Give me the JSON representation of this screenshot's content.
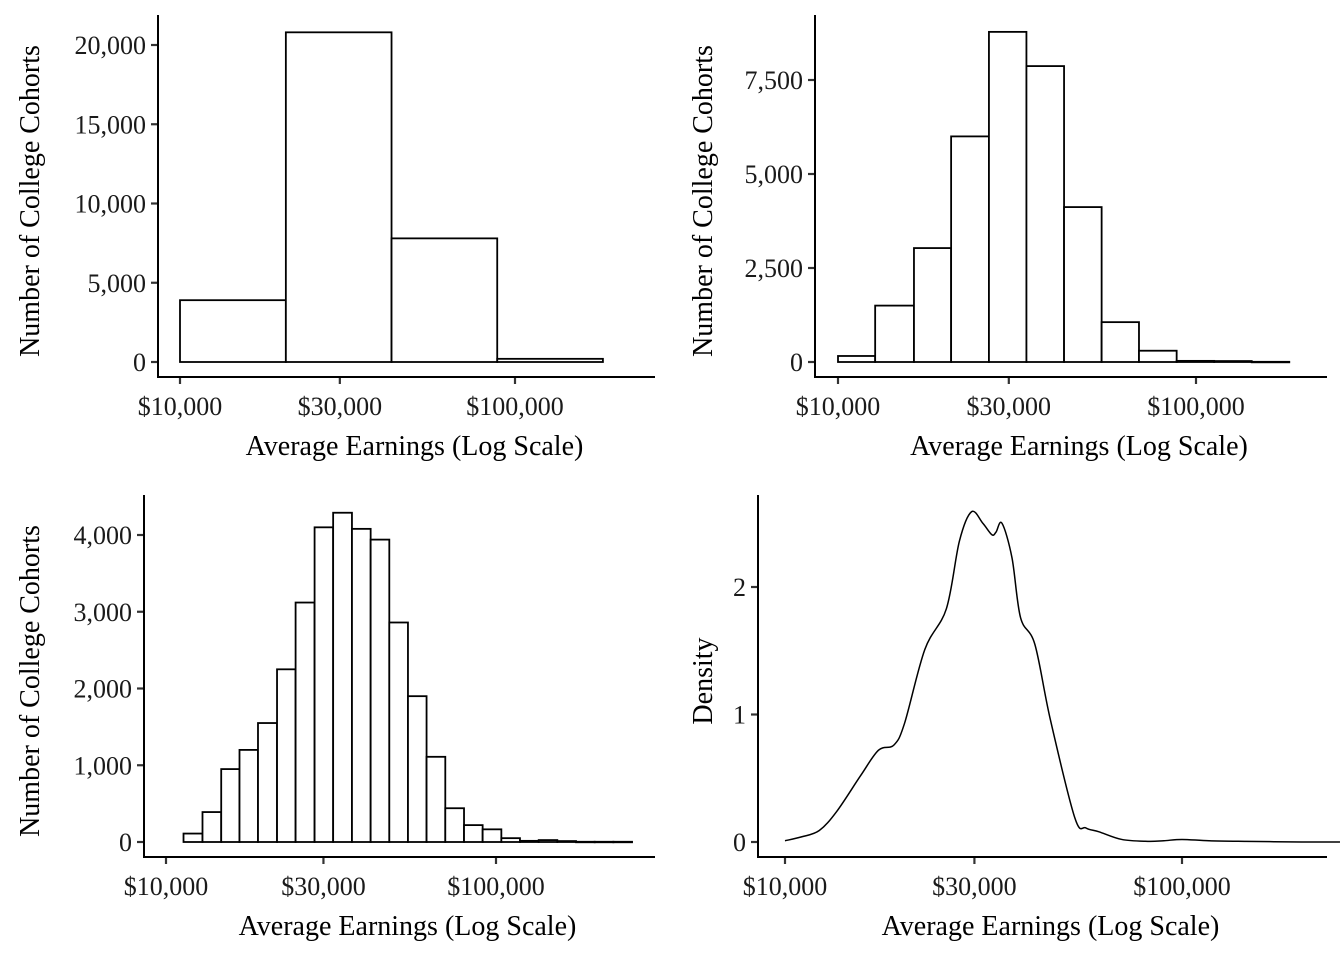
{
  "chart_data": [
    {
      "type": "bar",
      "subtype": "histogram",
      "panel": "top-left",
      "title": "",
      "xlabel": "Average Earnings (Log Scale)",
      "ylabel": "Number of College Cohorts",
      "x_scale": "log10",
      "xlim": [
        9000,
        260000
      ],
      "ylim": [
        0,
        21500
      ],
      "x_ticks": [
        10000,
        30000,
        100000
      ],
      "x_tick_labels": [
        "$10,000",
        "$30,000",
        "$100,000"
      ],
      "y_ticks": [
        0,
        5000,
        10000,
        15000,
        20000
      ],
      "y_tick_labels": [
        "0",
        "5,000",
        "10,000",
        "15,000",
        "20,000"
      ],
      "grid": false,
      "bin_edges": [
        10000,
        20700,
        42800,
        88500,
        183000
      ],
      "values": [
        3900,
        20800,
        7800,
        200
      ]
    },
    {
      "type": "bar",
      "subtype": "histogram",
      "panel": "top-right",
      "title": "",
      "xlabel": "Average Earnings (Log Scale)",
      "ylabel": "Number of College Cohorts",
      "x_scale": "log10",
      "xlim": [
        8700,
        260000
      ],
      "ylim": [
        0,
        9200
      ],
      "x_ticks": [
        10000,
        30000,
        100000
      ],
      "x_tick_labels": [
        "$10,000",
        "$30,000",
        "$100,000"
      ],
      "y_ticks": [
        0,
        2500,
        5000,
        7500
      ],
      "y_tick_labels": [
        "0",
        "2,500",
        "5,000",
        "7,500"
      ],
      "grid": false,
      "bin_edges": [
        10000,
        12700,
        16300,
        20700,
        26400,
        33600,
        42800,
        54500,
        69300,
        88300,
        112400,
        143100,
        182200
      ],
      "values": [
        160,
        1500,
        3030,
        6000,
        8780,
        7870,
        4120,
        1060,
        300,
        30,
        25,
        5
      ]
    },
    {
      "type": "bar",
      "subtype": "histogram",
      "panel": "bottom-left",
      "title": "",
      "xlabel": "Average Earnings (Log Scale)",
      "ylabel": "Number of College Cohorts",
      "x_scale": "log10",
      "xlim": [
        8600,
        260000
      ],
      "ylim": [
        0,
        4500
      ],
      "x_ticks": [
        10000,
        30000,
        100000
      ],
      "x_tick_labels": [
        "$10,000",
        "$30,000",
        "$100,000"
      ],
      "y_ticks": [
        0,
        1000,
        2000,
        3000,
        4000
      ],
      "y_tick_labels": [
        "0",
        "1,000",
        "2,000",
        "3,000",
        "4,000"
      ],
      "grid": false,
      "bin_edges": [
        11300,
        12900,
        14700,
        16700,
        19000,
        21700,
        24700,
        28200,
        32100,
        36600,
        41700,
        47500,
        54100,
        61600,
        70200,
        80000,
        91100,
        103800,
        118200,
        134700,
        153400,
        174800,
        199100,
        226800,
        258400
      ],
      "values": [
        110,
        390,
        950,
        1200,
        1550,
        2250,
        3120,
        4100,
        4290,
        4080,
        3940,
        2860,
        1900,
        1110,
        440,
        220,
        165,
        50,
        15,
        25,
        12,
        3,
        3,
        3
      ]
    },
    {
      "type": "line",
      "subtype": "density",
      "panel": "bottom-right",
      "title": "",
      "xlabel": "Average Earnings (Log Scale)",
      "ylabel": "Density",
      "x_scale": "log10",
      "xlim": [
        8800,
        260000
      ],
      "ylim": [
        0,
        2.7
      ],
      "x_ticks": [
        10000,
        30000,
        100000
      ],
      "x_tick_labels": [
        "$10,000",
        "$30,000",
        "$100,000"
      ],
      "y_ticks": [
        0,
        1,
        2
      ],
      "y_tick_labels": [
        "0",
        "1",
        "2"
      ],
      "grid": false,
      "x": [
        10000,
        11000,
        12200,
        13500,
        15500,
        17200,
        18800,
        20000,
        22500,
        25500,
        27500,
        29500,
        31500,
        33200,
        34000,
        35200,
        37300,
        39200,
        42600,
        46600,
        53700,
        57300,
        61800,
        70500,
        82000,
        90000,
        100000,
        117000,
        145000,
        200000,
        250000
      ],
      "y": [
        0.01,
        0.04,
        0.09,
        0.24,
        0.52,
        0.72,
        0.76,
        0.93,
        1.51,
        1.83,
        2.36,
        2.59,
        2.5,
        2.41,
        2.43,
        2.5,
        2.23,
        1.76,
        1.55,
        0.96,
        0.19,
        0.11,
        0.08,
        0.02,
        0.005,
        0.01,
        0.02,
        0.01,
        0.005,
        0.0,
        0.0
      ]
    }
  ]
}
